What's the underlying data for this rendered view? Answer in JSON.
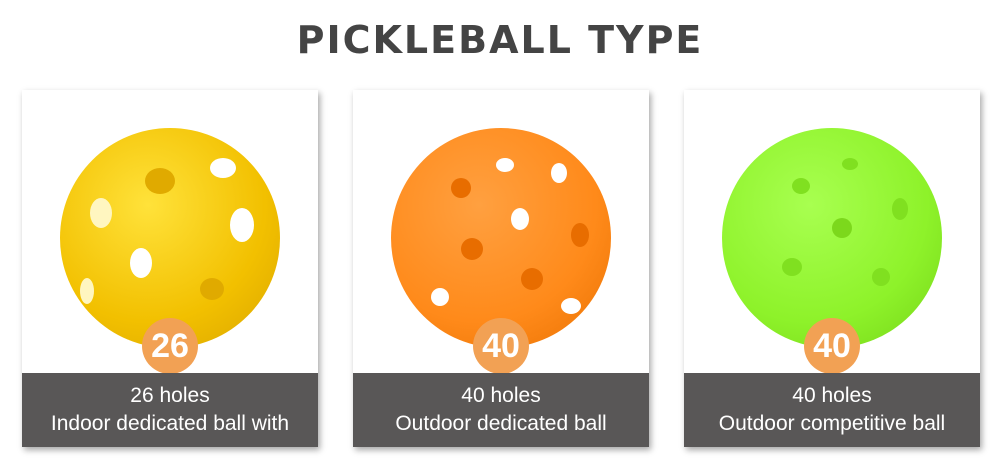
{
  "title": "PICKLEBALL TYPE",
  "cards": [
    {
      "badge": "26",
      "line1": "26 holes",
      "line2": "Indoor dedicated ball with",
      "color": "#f5c400"
    },
    {
      "badge": "40",
      "line1": "40 holes",
      "line2": "Outdoor dedicated ball",
      "color": "#ff8a1a"
    },
    {
      "badge": "40",
      "line1": "40 holes",
      "line2": "Outdoor competitive ball",
      "color": "#8ef22a"
    }
  ]
}
